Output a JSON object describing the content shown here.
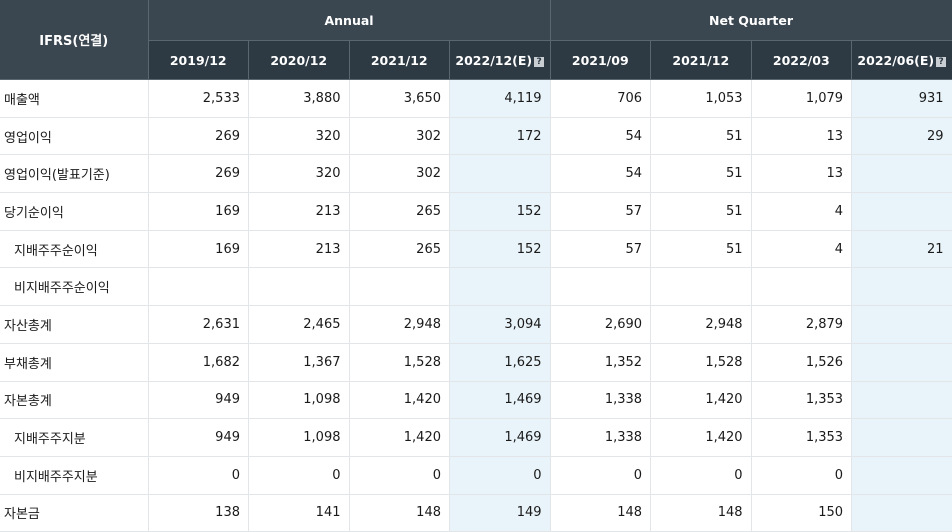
{
  "header": {
    "corner_label": "IFRS(연결)",
    "group_annual": "Annual",
    "group_quarter": "Net Quarter",
    "help_glyph": "?",
    "columns": [
      "2019/12",
      "2020/12",
      "2021/12",
      "2022/12(E)",
      "2021/09",
      "2021/12",
      "2022/03",
      "2022/06(E)"
    ]
  },
  "rows": [
    {
      "label": "매출액",
      "sub": false,
      "values": [
        "2,533",
        "3,880",
        "3,650",
        "4,119",
        "706",
        "1,053",
        "1,079",
        "931"
      ]
    },
    {
      "label": "영업이익",
      "sub": false,
      "values": [
        "269",
        "320",
        "302",
        "172",
        "54",
        "51",
        "13",
        "29"
      ]
    },
    {
      "label": "영업이익(발표기준)",
      "sub": false,
      "values": [
        "269",
        "320",
        "302",
        "",
        "54",
        "51",
        "13",
        ""
      ]
    },
    {
      "label": "당기순이익",
      "sub": false,
      "values": [
        "169",
        "213",
        "265",
        "152",
        "57",
        "51",
        "4",
        ""
      ]
    },
    {
      "label": "지배주주순이익",
      "sub": true,
      "values": [
        "169",
        "213",
        "265",
        "152",
        "57",
        "51",
        "4",
        "21"
      ]
    },
    {
      "label": "비지배주주순이익",
      "sub": true,
      "values": [
        "",
        "",
        "",
        "",
        "",
        "",
        "",
        ""
      ]
    },
    {
      "label": "자산총계",
      "sub": false,
      "values": [
        "2,631",
        "2,465",
        "2,948",
        "3,094",
        "2,690",
        "2,948",
        "2,879",
        ""
      ]
    },
    {
      "label": "부채총계",
      "sub": false,
      "values": [
        "1,682",
        "1,367",
        "1,528",
        "1,625",
        "1,352",
        "1,528",
        "1,526",
        ""
      ]
    },
    {
      "label": "자본총계",
      "sub": false,
      "values": [
        "949",
        "1,098",
        "1,420",
        "1,469",
        "1,338",
        "1,420",
        "1,353",
        ""
      ]
    },
    {
      "label": "지배주주지분",
      "sub": true,
      "values": [
        "949",
        "1,098",
        "1,420",
        "1,469",
        "1,338",
        "1,420",
        "1,353",
        ""
      ]
    },
    {
      "label": "비지배주주지분",
      "sub": true,
      "values": [
        "0",
        "0",
        "0",
        "0",
        "0",
        "0",
        "0",
        ""
      ]
    },
    {
      "label": "자본금",
      "sub": false,
      "values": [
        "138",
        "141",
        "148",
        "149",
        "148",
        "148",
        "150",
        ""
      ]
    }
  ],
  "estimate_columns": [
    3,
    7
  ],
  "colors": {
    "header_bg": "#2d3943",
    "estimate_bg": "#e9f4fa",
    "grid_line": "#e3e6e9"
  }
}
